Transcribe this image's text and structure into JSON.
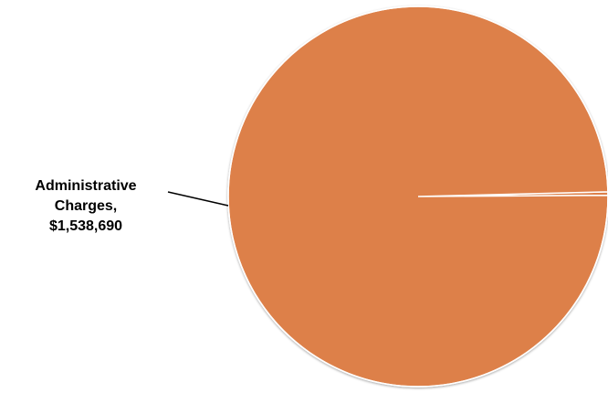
{
  "chart_data": {
    "type": "pie",
    "slices": [
      {
        "label_name": "Administrative",
        "label_name_2": "Charges,",
        "label_value": "$1,538,690",
        "value": 1538690,
        "color": "#dd8048"
      },
      {
        "value": 4500,
        "color": "#dd8048"
      }
    ],
    "separator_color": "#ffffff",
    "legend": "none"
  }
}
